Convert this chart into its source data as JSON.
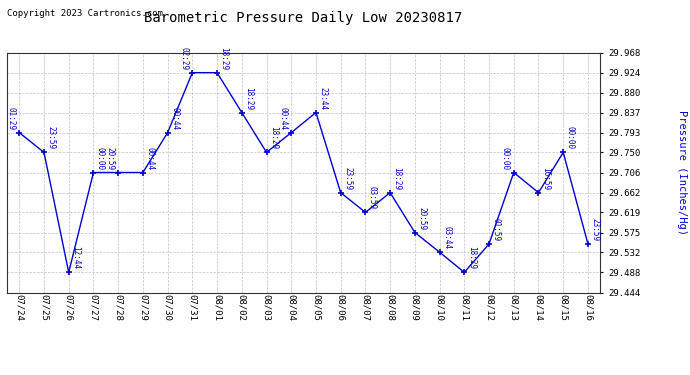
{
  "title": "Barometric Pressure Daily Low 20230817",
  "ylabel": "Pressure (Inches/Hg)",
  "copyright": "Copyright 2023 Cartronics.com",
  "line_color": "#0000cc",
  "background_color": "#ffffff",
  "grid_color": "#bbbbbb",
  "text_color_blue": "#0000cc",
  "text_color_black": "#000000",
  "ylim": [
    29.444,
    29.968
  ],
  "yticks": [
    29.444,
    29.488,
    29.532,
    29.575,
    29.619,
    29.662,
    29.706,
    29.75,
    29.793,
    29.837,
    29.88,
    29.924,
    29.968
  ],
  "dates": [
    "07/24",
    "07/25",
    "07/26",
    "07/27",
    "07/28",
    "07/29",
    "07/30",
    "07/31",
    "08/01",
    "08/02",
    "08/03",
    "08/04",
    "08/05",
    "08/06",
    "08/07",
    "08/08",
    "08/09",
    "08/10",
    "08/11",
    "08/12",
    "08/13",
    "08/14",
    "08/15",
    "08/16"
  ],
  "x_indices": [
    0,
    1,
    2,
    3,
    4,
    5,
    6,
    7,
    8,
    9,
    10,
    11,
    12,
    13,
    14,
    15,
    16,
    17,
    18,
    19,
    20,
    21,
    22,
    23
  ],
  "values": [
    29.793,
    29.75,
    29.488,
    29.706,
    29.706,
    29.706,
    29.793,
    29.924,
    29.924,
    29.837,
    29.75,
    29.793,
    29.837,
    29.662,
    29.619,
    29.662,
    29.575,
    29.532,
    29.488,
    29.55,
    29.706,
    29.662,
    29.75,
    29.55
  ],
  "annotations": [
    {
      "xi": 0,
      "label": "01:29",
      "side": "left"
    },
    {
      "xi": 1,
      "label": "23:59",
      "side": "right"
    },
    {
      "xi": 2,
      "label": "12:44",
      "side": "right"
    },
    {
      "xi": 3,
      "label": "00:00",
      "side": "right"
    },
    {
      "xi": 4,
      "label": "20:59",
      "side": "left"
    },
    {
      "xi": 5,
      "label": "00:44",
      "side": "right"
    },
    {
      "xi": 6,
      "label": "00:44",
      "side": "right"
    },
    {
      "xi": 7,
      "label": "02:29",
      "side": "left"
    },
    {
      "xi": 8,
      "label": "18:29",
      "side": "right"
    },
    {
      "xi": 9,
      "label": "18:29",
      "side": "right"
    },
    {
      "xi": 10,
      "label": "18:29",
      "side": "right"
    },
    {
      "xi": 11,
      "label": "00:44",
      "side": "left"
    },
    {
      "xi": 12,
      "label": "23:44",
      "side": "right"
    },
    {
      "xi": 13,
      "label": "23:59",
      "side": "right"
    },
    {
      "xi": 14,
      "label": "03:59",
      "side": "right"
    },
    {
      "xi": 15,
      "label": "18:29",
      "side": "right"
    },
    {
      "xi": 16,
      "label": "20:59",
      "side": "right"
    },
    {
      "xi": 17,
      "label": "03:44",
      "side": "right"
    },
    {
      "xi": 18,
      "label": "18:29",
      "side": "right"
    },
    {
      "xi": 19,
      "label": "01:59",
      "side": "right"
    },
    {
      "xi": 20,
      "label": "00:00",
      "side": "left"
    },
    {
      "xi": 21,
      "label": "16:59",
      "side": "right"
    },
    {
      "xi": 22,
      "label": "00:00",
      "side": "right"
    },
    {
      "xi": 23,
      "label": "23:59",
      "side": "right"
    }
  ]
}
